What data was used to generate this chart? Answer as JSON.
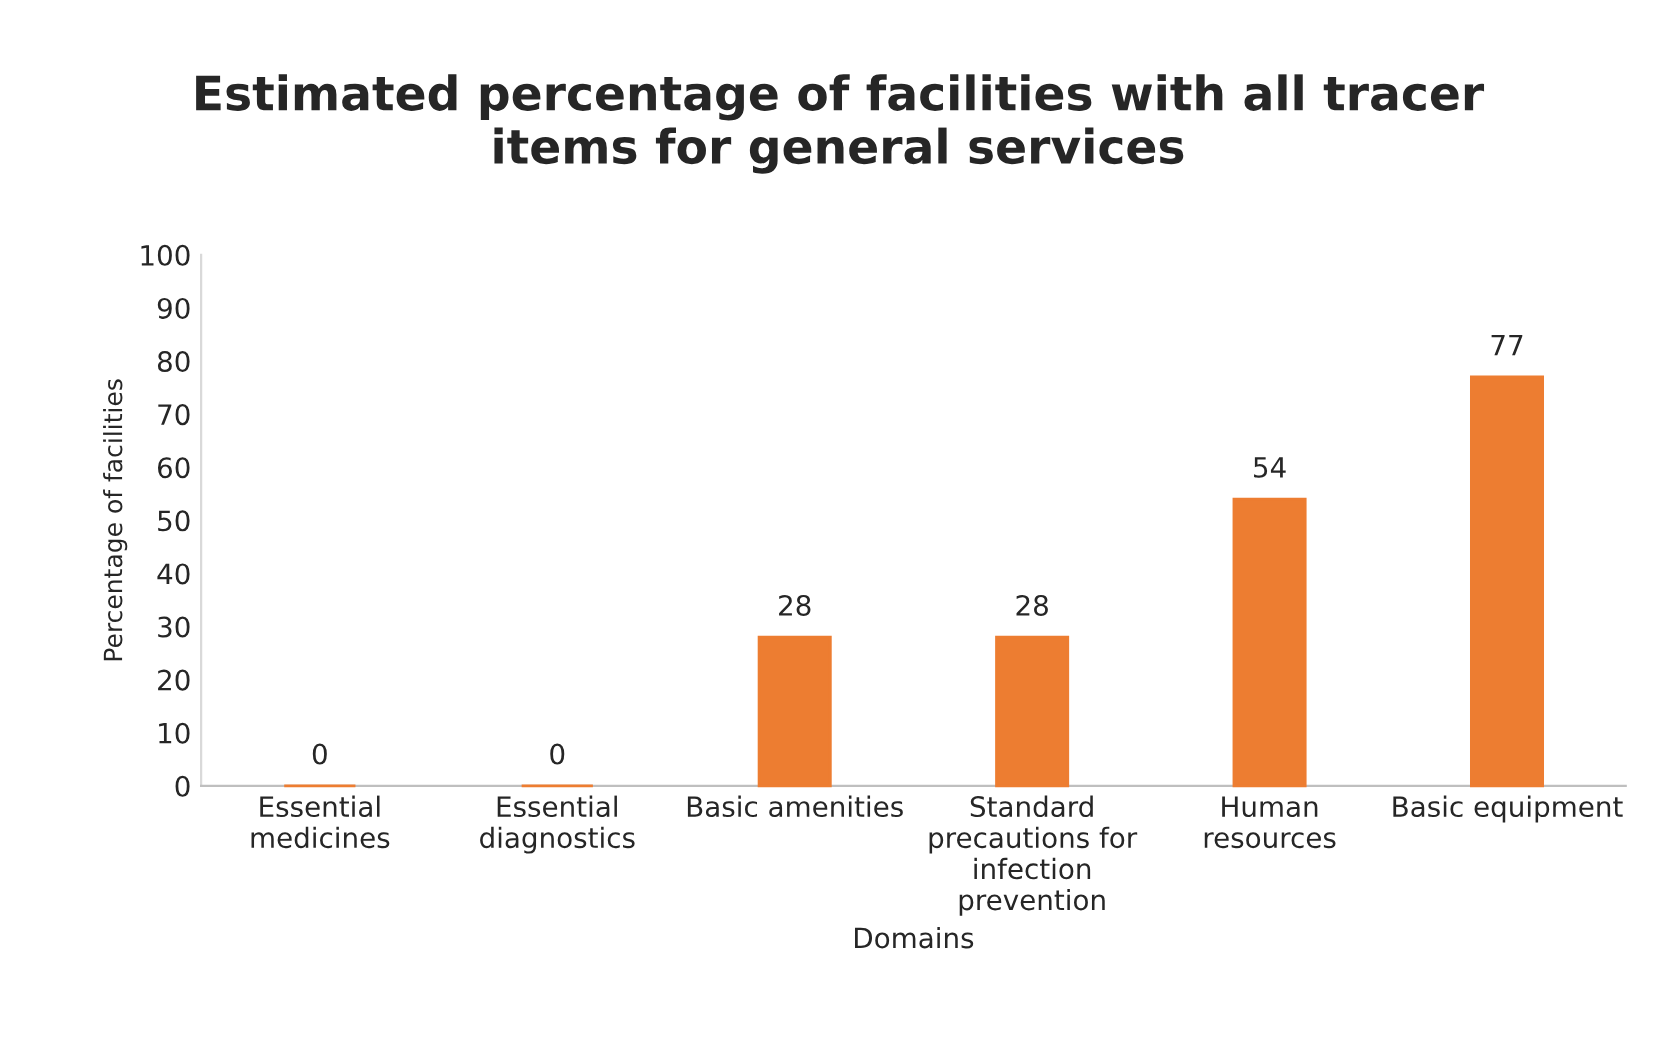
{
  "chart_data": {
    "type": "bar",
    "title": "Estimated percentage of facilities with all tracer\nitems for general services",
    "xlabel": "Domains",
    "ylabel": "Percentage of facilities",
    "categories": [
      "Essential\nmedicines",
      "Essential\ndiagnostics",
      "Basic amenities",
      "Standard\nprecautions for\ninfection\nprevention",
      "Human\nresources",
      "Basic equipment"
    ],
    "values": [
      0,
      0,
      28,
      28,
      54,
      77
    ],
    "color": "#ed7d31",
    "ylim": [
      0,
      100
    ],
    "yticks": [
      0,
      10,
      20,
      30,
      40,
      50,
      60,
      70,
      80,
      90,
      100
    ],
    "data_labels": true,
    "grid": false,
    "legend": false
  }
}
